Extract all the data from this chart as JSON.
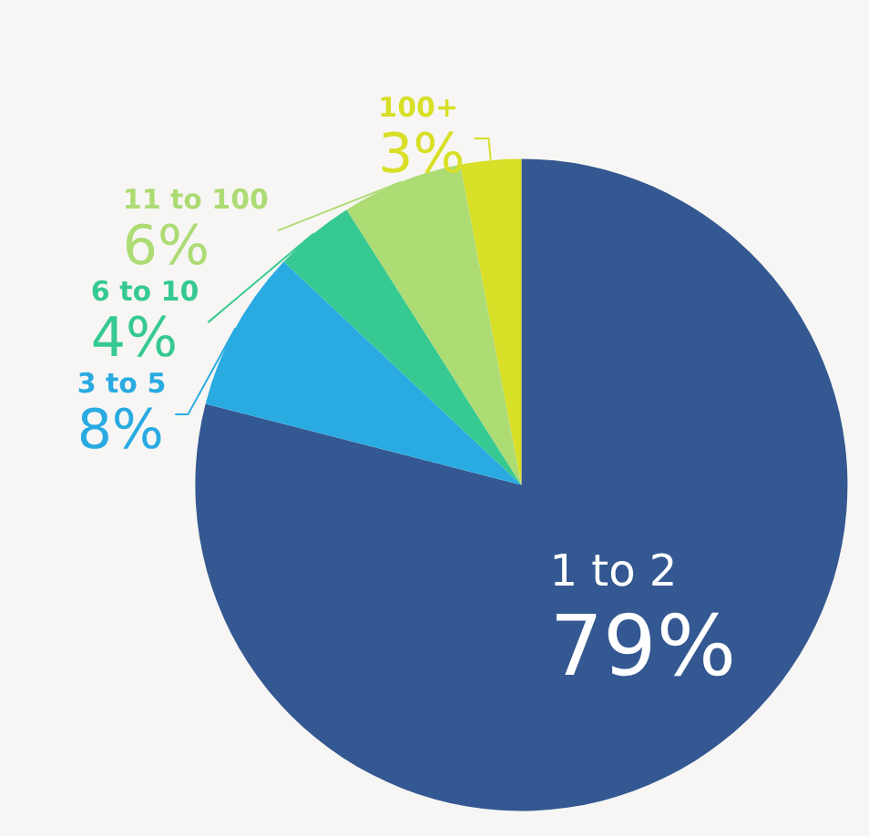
{
  "chart_data": {
    "type": "pie",
    "categories": [
      "1 to 2",
      "3 to 5",
      "6 to 10",
      "11 to 100",
      "100+"
    ],
    "values": [
      79,
      8,
      4,
      6,
      3
    ],
    "value_labels": [
      "79%",
      "8%",
      "4%",
      "6%",
      "3%"
    ],
    "colors": [
      "#345891",
      "#29abe2",
      "#36c991",
      "#addb74",
      "#d8df27"
    ]
  }
}
